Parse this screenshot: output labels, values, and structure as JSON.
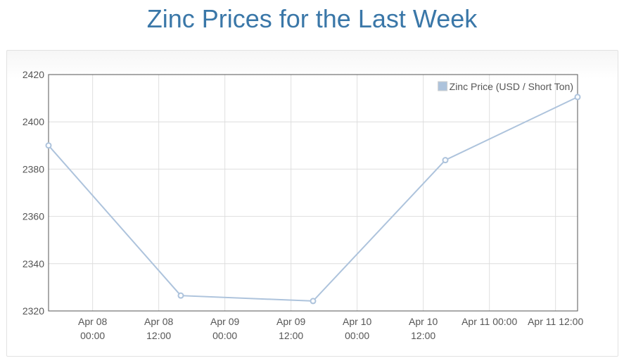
{
  "page": {
    "title": "Zinc Prices for the Last Week"
  },
  "chart_data": {
    "type": "line",
    "title": "Zinc Prices for the Last Week",
    "xlabel": "",
    "ylabel": "",
    "ylim": [
      2320,
      2420
    ],
    "yticks": [
      "2320",
      "2340",
      "2360",
      "2380",
      "2400",
      "2420"
    ],
    "xlim": [
      "2025-04-07T16:00",
      "2025-04-11T16:00"
    ],
    "xticks": [
      {
        "at": "2025-04-08T00:00",
        "lines": [
          "Apr 08",
          "00:00"
        ]
      },
      {
        "at": "2025-04-08T12:00",
        "lines": [
          "Apr 08",
          "12:00"
        ]
      },
      {
        "at": "2025-04-09T00:00",
        "lines": [
          "Apr 09",
          "00:00"
        ]
      },
      {
        "at": "2025-04-09T12:00",
        "lines": [
          "Apr 09",
          "12:00"
        ]
      },
      {
        "at": "2025-04-10T00:00",
        "lines": [
          "Apr 10",
          "00:00"
        ]
      },
      {
        "at": "2025-04-10T12:00",
        "lines": [
          "Apr 10",
          "12:00"
        ]
      },
      {
        "at": "2025-04-11T00:00",
        "lines": [
          "Apr 11 00:00"
        ]
      },
      {
        "at": "2025-04-11T12:00",
        "lines": [
          "Apr 11 12:00"
        ]
      }
    ],
    "grid": true,
    "legend_position": "top-right",
    "series": [
      {
        "name": "Zinc Price (USD / Short Ton)",
        "color": "#adc3dc",
        "points": [
          {
            "x": "2025-04-07T16:00",
            "y": 2390
          },
          {
            "x": "2025-04-08T16:00",
            "y": 2326.5
          },
          {
            "x": "2025-04-09T16:00",
            "y": 2324.2
          },
          {
            "x": "2025-04-10T16:00",
            "y": 2383.8
          },
          {
            "x": "2025-04-11T16:00",
            "y": 2410.5
          }
        ]
      }
    ]
  }
}
